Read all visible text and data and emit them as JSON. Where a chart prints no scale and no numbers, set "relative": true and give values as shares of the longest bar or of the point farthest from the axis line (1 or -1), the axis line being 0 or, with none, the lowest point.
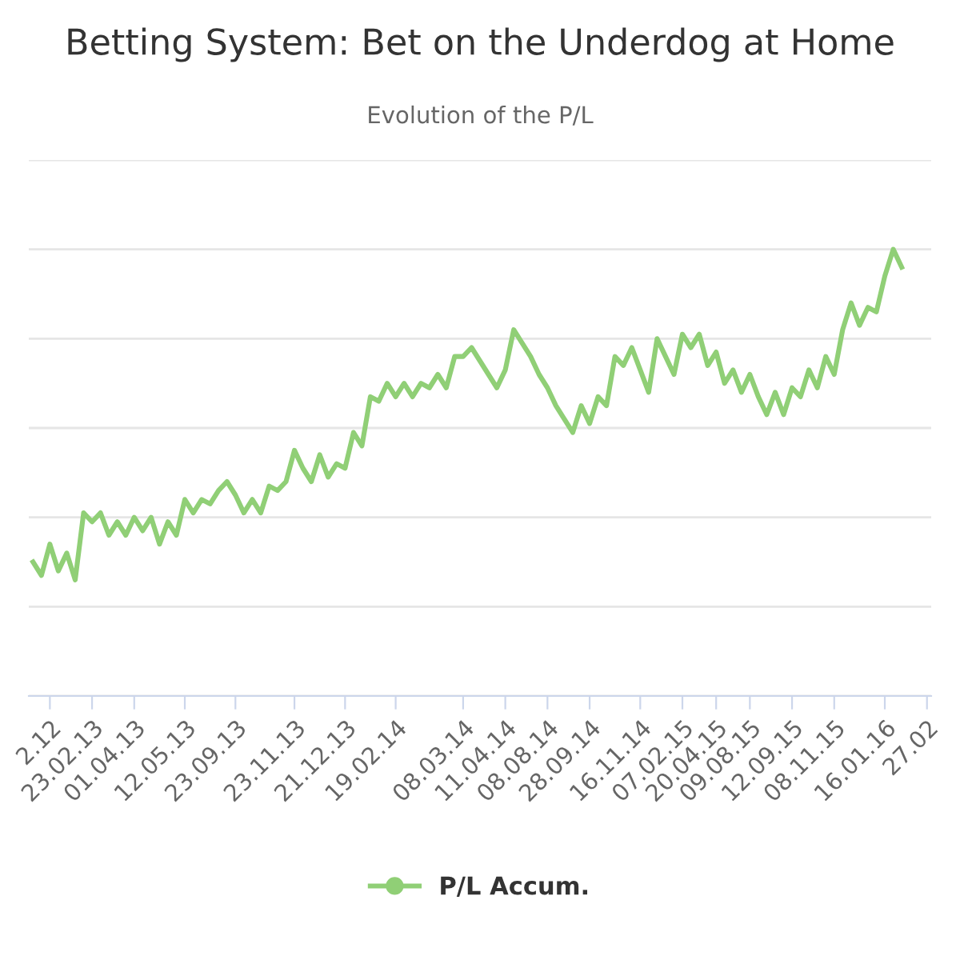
{
  "chart_data": {
    "type": "line",
    "title": "Betting System: Bet on the Underdog at Home",
    "subtitle": "Evolution of the P/L",
    "relative": true,
    "categories": [
      null,
      null,
      "2.12",
      null,
      null,
      null,
      null,
      "23.02.13",
      null,
      null,
      null,
      null,
      "01.04.13",
      null,
      null,
      null,
      null,
      null,
      "12.05.13",
      null,
      null,
      null,
      null,
      null,
      "23.09.13",
      null,
      null,
      null,
      null,
      null,
      null,
      "23.11.13",
      null,
      null,
      null,
      null,
      null,
      "21.12.13",
      null,
      null,
      null,
      null,
      null,
      "19.02.14",
      null,
      null,
      null,
      null,
      null,
      null,
      null,
      "08.03.14",
      null,
      null,
      null,
      null,
      "11.04.14",
      null,
      null,
      null,
      null,
      "08.08.14",
      null,
      null,
      null,
      null,
      "28.09.14",
      null,
      null,
      null,
      null,
      null,
      "16.11.14",
      null,
      null,
      null,
      null,
      "07.02.15",
      null,
      null,
      null,
      "20.04.15",
      null,
      null,
      null,
      "09.08.15",
      null,
      null,
      null,
      null,
      "12.09.15",
      null,
      null,
      null,
      null,
      "08.11.15",
      null,
      null,
      null,
      null,
      null,
      "16.01.16",
      null,
      null,
      null,
      null,
      "27.02"
    ],
    "series": [
      {
        "name": "P/L Accum.",
        "color": "#90cf76",
        "values": [
          0.3,
          0.27,
          0.34,
          0.28,
          0.32,
          0.26,
          0.41,
          0.39,
          0.41,
          0.36,
          0.39,
          0.36,
          0.4,
          0.37,
          0.4,
          0.34,
          0.39,
          0.36,
          0.44,
          0.41,
          0.44,
          0.43,
          0.46,
          0.48,
          0.45,
          0.41,
          0.44,
          0.41,
          0.47,
          0.46,
          0.48,
          0.55,
          0.51,
          0.48,
          0.54,
          0.49,
          0.52,
          0.51,
          0.59,
          0.56,
          0.67,
          0.66,
          0.7,
          0.67,
          0.7,
          0.67,
          0.7,
          0.69,
          0.72,
          0.69,
          0.76,
          0.76,
          0.78,
          0.75,
          0.72,
          0.69,
          0.73,
          0.82,
          0.79,
          0.76,
          0.72,
          0.69,
          0.65,
          0.62,
          0.59,
          0.65,
          0.61,
          0.67,
          0.65,
          0.76,
          0.74,
          0.78,
          0.73,
          0.68,
          0.8,
          0.76,
          0.72,
          0.81,
          0.78,
          0.81,
          0.74,
          0.77,
          0.7,
          0.73,
          0.68,
          0.72,
          0.67,
          0.63,
          0.68,
          0.63,
          0.69,
          0.67,
          0.73,
          0.69,
          0.76,
          0.72,
          0.82,
          0.88,
          0.83,
          0.87,
          0.86,
          0.94,
          1.0,
          0.96,
          null,
          null,
          null
        ]
      }
    ],
    "grid": "y",
    "legend": "bottom",
    "marker": "none",
    "line_style": "solid"
  }
}
